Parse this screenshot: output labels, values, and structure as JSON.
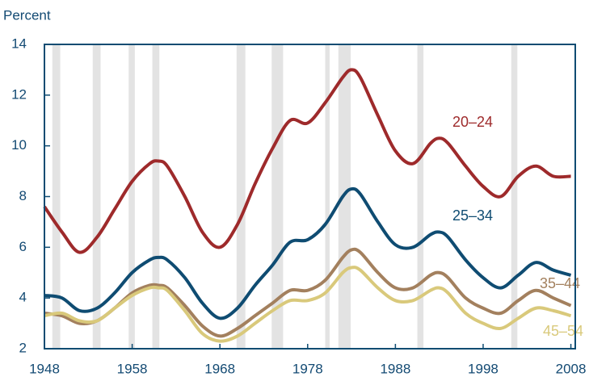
{
  "chart_data": {
    "type": "line",
    "y_axis_label": "Percent",
    "x": [
      1948,
      1950,
      1952,
      1954,
      1956,
      1958,
      1960,
      1961,
      1962,
      1964,
      1966,
      1968,
      1970,
      1972,
      1974,
      1976,
      1978,
      1980,
      1982,
      1983,
      1984,
      1986,
      1988,
      1990,
      1992,
      1993,
      1994,
      1996,
      1998,
      2000,
      2002,
      2004,
      2006,
      2008
    ],
    "series": [
      {
        "name": "20–24",
        "color": "#9e2a2b",
        "values": [
          7.6,
          6.6,
          5.8,
          6.4,
          7.5,
          8.6,
          9.3,
          9.4,
          9.2,
          8.0,
          6.6,
          6.0,
          6.9,
          8.5,
          9.9,
          11.0,
          10.9,
          11.7,
          12.7,
          13.0,
          12.7,
          11.2,
          9.8,
          9.3,
          10.1,
          10.3,
          10.1,
          9.2,
          8.4,
          8.0,
          8.8,
          9.2,
          8.8,
          8.8
        ]
      },
      {
        "name": "25–34",
        "color": "#0f4c72",
        "values": [
          4.1,
          4.0,
          3.5,
          3.6,
          4.2,
          5.0,
          5.5,
          5.6,
          5.5,
          4.8,
          3.8,
          3.2,
          3.6,
          4.5,
          5.3,
          6.2,
          6.3,
          6.9,
          8.0,
          8.3,
          8.1,
          7.0,
          6.1,
          6.0,
          6.5,
          6.6,
          6.4,
          5.5,
          4.8,
          4.4,
          4.9,
          5.4,
          5.1,
          4.9
        ]
      },
      {
        "name": "35–44",
        "color": "#a3805e",
        "values": [
          3.4,
          3.3,
          3.0,
          3.1,
          3.6,
          4.2,
          4.5,
          4.5,
          4.4,
          3.7,
          2.9,
          2.5,
          2.8,
          3.3,
          3.8,
          4.3,
          4.3,
          4.7,
          5.6,
          5.9,
          5.8,
          5.0,
          4.4,
          4.4,
          4.9,
          5.0,
          4.8,
          4.0,
          3.6,
          3.4,
          3.9,
          4.3,
          4.0,
          3.7
        ]
      },
      {
        "name": "45–54",
        "color": "#d9c97b",
        "values": [
          3.3,
          3.4,
          3.1,
          3.1,
          3.6,
          4.1,
          4.4,
          4.4,
          4.3,
          3.5,
          2.6,
          2.3,
          2.5,
          3.0,
          3.5,
          3.9,
          3.9,
          4.2,
          5.0,
          5.2,
          5.1,
          4.4,
          3.9,
          3.9,
          4.3,
          4.4,
          4.2,
          3.4,
          3.0,
          2.8,
          3.2,
          3.6,
          3.5,
          3.3
        ]
      }
    ],
    "shaded_periods": [
      [
        1948.9,
        1949.8
      ],
      [
        1953.5,
        1954.4
      ],
      [
        1957.6,
        1958.3
      ],
      [
        1960.3,
        1961.1
      ],
      [
        1969.9,
        1970.9
      ],
      [
        1973.9,
        1975.2
      ],
      [
        1980.0,
        1980.5
      ],
      [
        1981.5,
        1982.9
      ],
      [
        1990.5,
        1991.2
      ],
      [
        2001.2,
        2001.9
      ]
    ],
    "shade_color": "#e3e3e3",
    "xlim": [
      1948,
      2008.5
    ],
    "xticks": [
      1948,
      1958,
      1968,
      1978,
      1988,
      1998,
      2008
    ],
    "ylim": [
      2,
      14
    ],
    "yticks": [
      2,
      4,
      6,
      8,
      10,
      12,
      14
    ]
  }
}
